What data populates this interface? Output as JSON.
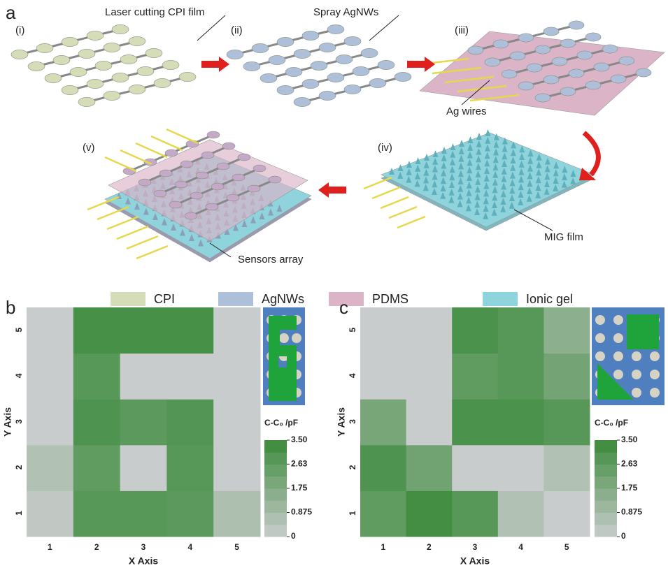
{
  "panel_a": {
    "label": "a",
    "steps": [
      "(i)",
      "(ii)",
      "(iii)",
      "(iv)",
      "(v)"
    ],
    "annotations": [
      "Laser cutting CPI film",
      "Spray AgNWs",
      "Ag wires",
      "MIG film",
      "Sensors array"
    ]
  },
  "legend": [
    {
      "name": "CPI",
      "color": "#d4dcb8"
    },
    {
      "name": "AgNWs",
      "color": "#aebfd9"
    },
    {
      "name": "PDMS",
      "color": "#dcb4c8"
    },
    {
      "name": "Ionic gel",
      "color": "#8fd3dc"
    }
  ],
  "chart_data": [
    {
      "type": "heatmap",
      "panel": "b",
      "xlabel": "X Axis",
      "ylabel": "Y Axis",
      "x": [
        1,
        2,
        3,
        4,
        5
      ],
      "y": [
        1,
        2,
        3,
        4,
        5
      ],
      "z": [
        [
          0.2,
          2.8,
          2.8,
          2.7,
          0.7
        ],
        [
          0.6,
          2.6,
          0,
          2.8,
          0
        ],
        [
          0,
          3.0,
          2.7,
          2.9,
          0
        ],
        [
          0,
          2.8,
          0,
          0,
          0
        ],
        [
          0,
          3.2,
          3.2,
          3.2,
          0
        ]
      ],
      "colorbar_title": "C-C₀ /pF",
      "zlim": [
        0,
        3.5
      ],
      "cticks": [
        0,
        0.875,
        1.75,
        2.63,
        {
          "value": 3.5,
          "label": "3.50"
        }
      ],
      "colors": [
        "#c9cccc",
        "#3b8a3b"
      ]
    },
    {
      "type": "heatmap",
      "panel": "c",
      "xlabel": "X Axis",
      "ylabel": "Y Axis",
      "x": [
        1,
        2,
        3,
        4,
        5
      ],
      "y": [
        1,
        2,
        3,
        4,
        5
      ],
      "z": [
        [
          2.6,
          3.3,
          2.8,
          0.6,
          0
        ],
        [
          3.0,
          2.2,
          0,
          0,
          0.6
        ],
        [
          2.0,
          0,
          3.1,
          3.1,
          2.8
        ],
        [
          0,
          0,
          2.6,
          2.8,
          2.1
        ],
        [
          0,
          0,
          3.1,
          2.8,
          1.5
        ]
      ],
      "colorbar_title": "C-C₀ /pF",
      "zlim": [
        0,
        3.5
      ],
      "cticks": [
        0,
        0.875,
        1.75,
        2.63,
        {
          "value": 3.5,
          "label": "3.50"
        }
      ],
      "colors": [
        "#c9cccc",
        "#3b8a3b"
      ]
    }
  ]
}
